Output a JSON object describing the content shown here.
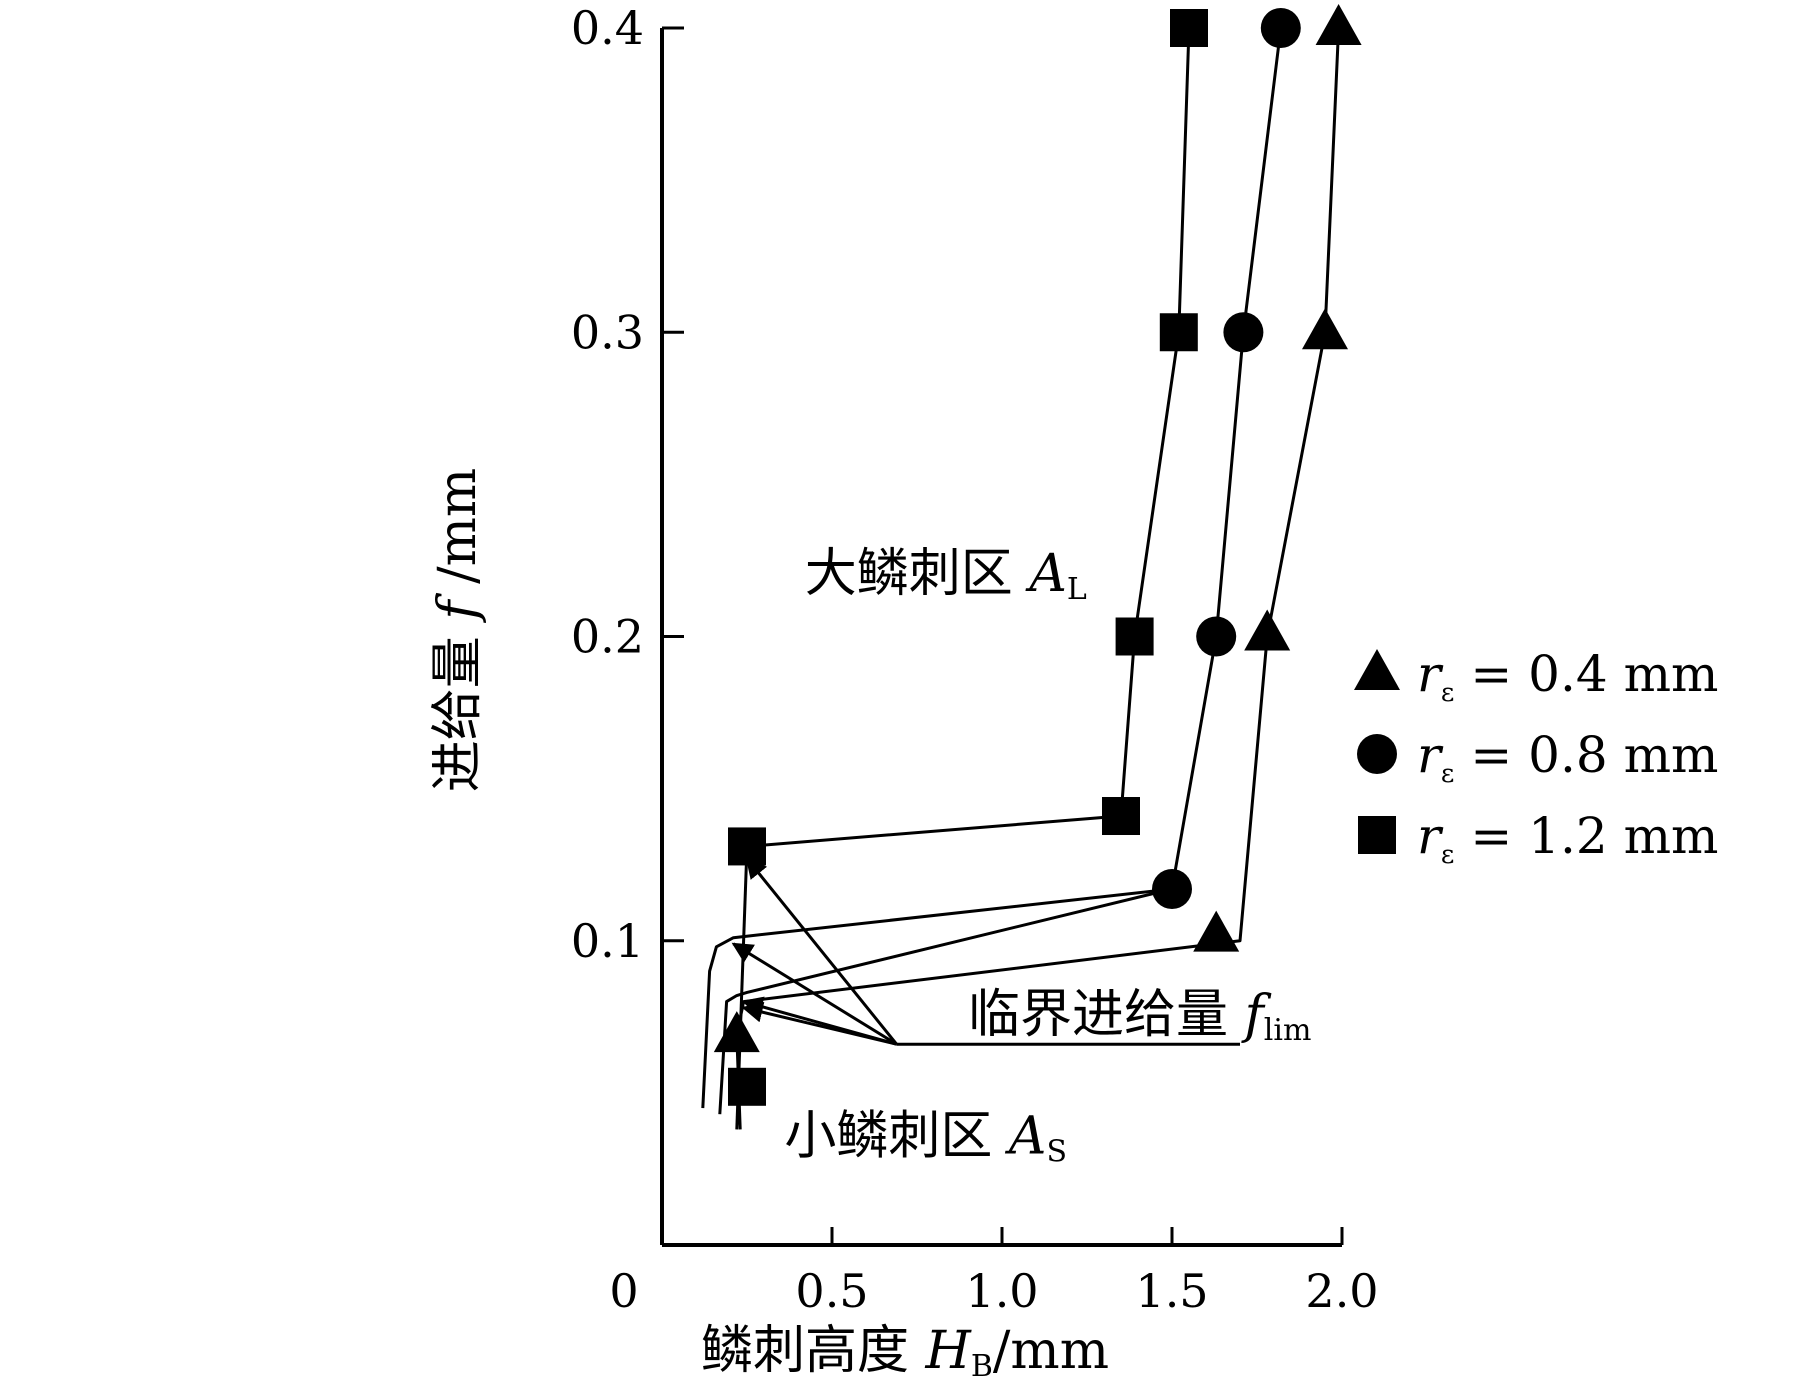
{
  "chart_data": {
    "type": "line",
    "xlabel": {
      "prefix": "鳞刺高度 ",
      "var": "H",
      "sub": "B",
      "suffix": "/mm"
    },
    "ylabel": {
      "prefix": "进给量 ",
      "var": "f",
      "suffix": " /mm"
    },
    "xlim": [
      0,
      2.0
    ],
    "ylim": [
      0,
      0.4
    ],
    "x_ticks": [
      0.5,
      1.0,
      1.5,
      2.0
    ],
    "x_tick_labels": [
      "0.5",
      "1.0",
      "1.5",
      "2.0"
    ],
    "y_ticks": [
      0.1,
      0.2,
      0.3,
      0.4
    ],
    "y_tick_labels": [
      "0.1",
      "0.2",
      "0.3",
      "0.4"
    ],
    "origin_label": "0",
    "series": [
      {
        "name": "rε = 0.4 mm",
        "label_var": "r",
        "label_sub": "ε",
        "label_value": "= 0.4 mm",
        "marker": "triangle",
        "points": [
          [
            0.22,
            0.069
          ],
          [
            1.63,
            0.102
          ],
          [
            1.78,
            0.201
          ],
          [
            1.95,
            0.3
          ],
          [
            1.99,
            0.4
          ]
        ],
        "curve": [
          [
            0.23,
            0.038
          ],
          [
            0.22,
            0.069
          ],
          [
            0.24,
            0.08
          ],
          [
            1.7,
            0.1
          ],
          [
            1.78,
            0.2
          ],
          [
            1.95,
            0.3
          ],
          [
            1.99,
            0.4
          ]
        ]
      },
      {
        "name": "rε = 0.8 mm",
        "label_var": "r",
        "label_sub": "ε",
        "label_value": "= 0.8 mm",
        "marker": "circle",
        "points": [
          [
            1.5,
            0.117
          ],
          [
            1.63,
            0.2
          ],
          [
            1.71,
            0.3
          ],
          [
            1.82,
            0.4
          ]
        ],
        "curve": [
          [
            0.17,
            0.043
          ],
          [
            0.19,
            0.08
          ],
          [
            0.22,
            0.082
          ],
          [
            0.25,
            0.083
          ],
          [
            1.5,
            0.117
          ],
          [
            1.63,
            0.2
          ],
          [
            1.71,
            0.3
          ],
          [
            1.82,
            0.4
          ]
        ]
      },
      {
        "name": "rε = 1.2 mm",
        "label_var": "r",
        "label_sub": "ε",
        "label_value": "= 1.2 mm",
        "marker": "square",
        "points": [
          [
            0.25,
            0.131
          ],
          [
            0.25,
            0.052
          ],
          [
            1.35,
            0.141
          ],
          [
            1.39,
            0.2
          ],
          [
            1.52,
            0.3
          ],
          [
            1.55,
            0.4
          ]
        ],
        "curve": [
          [
            0.25,
            0.131
          ],
          [
            1.35,
            0.141
          ],
          [
            1.39,
            0.2
          ],
          [
            1.52,
            0.3
          ],
          [
            1.55,
            0.4
          ]
        ],
        "extra_curve": [
          [
            0.12,
            0.045
          ],
          [
            0.14,
            0.09
          ],
          [
            0.16,
            0.098
          ],
          [
            0.21,
            0.101
          ],
          [
            1.5,
            0.117
          ]
        ],
        "vertical_curve": [
          [
            0.22,
            0.038
          ],
          [
            0.25,
            0.131
          ]
        ]
      }
    ],
    "annotations": {
      "large_zone": {
        "text": "大鳞刺区 ",
        "var": "A",
        "sub": "L",
        "x": 0.42,
        "y": 0.215
      },
      "small_zone": {
        "text": "小鳞刺区 ",
        "var": "A",
        "sub": "S",
        "x": 0.36,
        "y": 0.03
      },
      "critical_feed": {
        "text": "临界进给量 ",
        "var": "f",
        "sub": "lim",
        "x": 0.9,
        "y": 0.07,
        "baseline_from": [
          0.69,
          0.066
        ],
        "baseline_to": [
          1.7,
          0.066
        ],
        "arrow_targets": [
          [
            0.25,
            0.127
          ],
          [
            0.21,
            0.099
          ],
          [
            0.24,
            0.08
          ],
          [
            0.24,
            0.078
          ]
        ]
      }
    },
    "legend": {
      "position": "right-middle"
    }
  }
}
